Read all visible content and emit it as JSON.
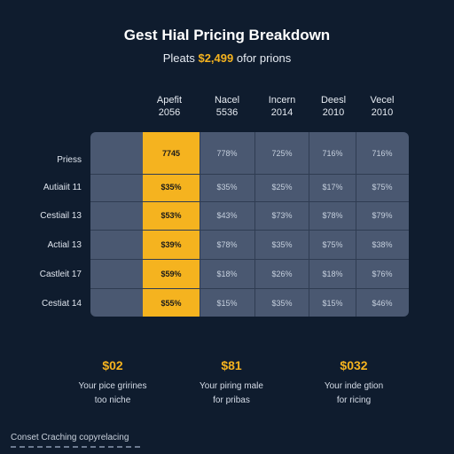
{
  "title": "Gest Hial Pricing Breakdown",
  "subtitle": {
    "prefix": "Pleats",
    "amount": "$2,499",
    "suffix": "ofor prions"
  },
  "columns": [
    {
      "line1": "Apefit",
      "line2": "2056"
    },
    {
      "line1": "Nacel",
      "line2": "5536"
    },
    {
      "line1": "Incern",
      "line2": "2014"
    },
    {
      "line1": "Deesl",
      "line2": "2010"
    },
    {
      "line1": "Vecel",
      "line2": "2010"
    }
  ],
  "rows": [
    {
      "label": "Priess",
      "cells": [
        "7745",
        "778%",
        "725%",
        "716%",
        "716%"
      ]
    },
    {
      "label": "Autiaiit 11",
      "cells": [
        "$35%",
        "$35%",
        "$25%",
        "$17%",
        "$75%"
      ]
    },
    {
      "label": "Cestiail 13",
      "cells": [
        "$53%",
        "$43%",
        "$73%",
        "$78%",
        "$79%"
      ]
    },
    {
      "label": "Actial 13",
      "cells": [
        "$39%",
        "$78%",
        "$35%",
        "$75%",
        "$38%"
      ]
    },
    {
      "label": "Castleit 17",
      "cells": [
        "$59%",
        "$18%",
        "$26%",
        "$18%",
        "$76%"
      ]
    },
    {
      "label": "Cestiat 14",
      "cells": [
        "$55%",
        "$15%",
        "$35%",
        "$15%",
        "$46%"
      ]
    }
  ],
  "stats": [
    {
      "value": "$02",
      "line1": "Your pice grirines",
      "line2": "too niche"
    },
    {
      "value": "$81",
      "line1": "Your piring male",
      "line2": "for pribas"
    },
    {
      "value": "$032",
      "line1": "Your inde gtion",
      "line2": "for ricing"
    }
  ],
  "footer": "Conset Craching copyrelacing",
  "colors": {
    "background": "#0f1c2e",
    "accent": "#f5b31f",
    "table": "#4a5871"
  }
}
